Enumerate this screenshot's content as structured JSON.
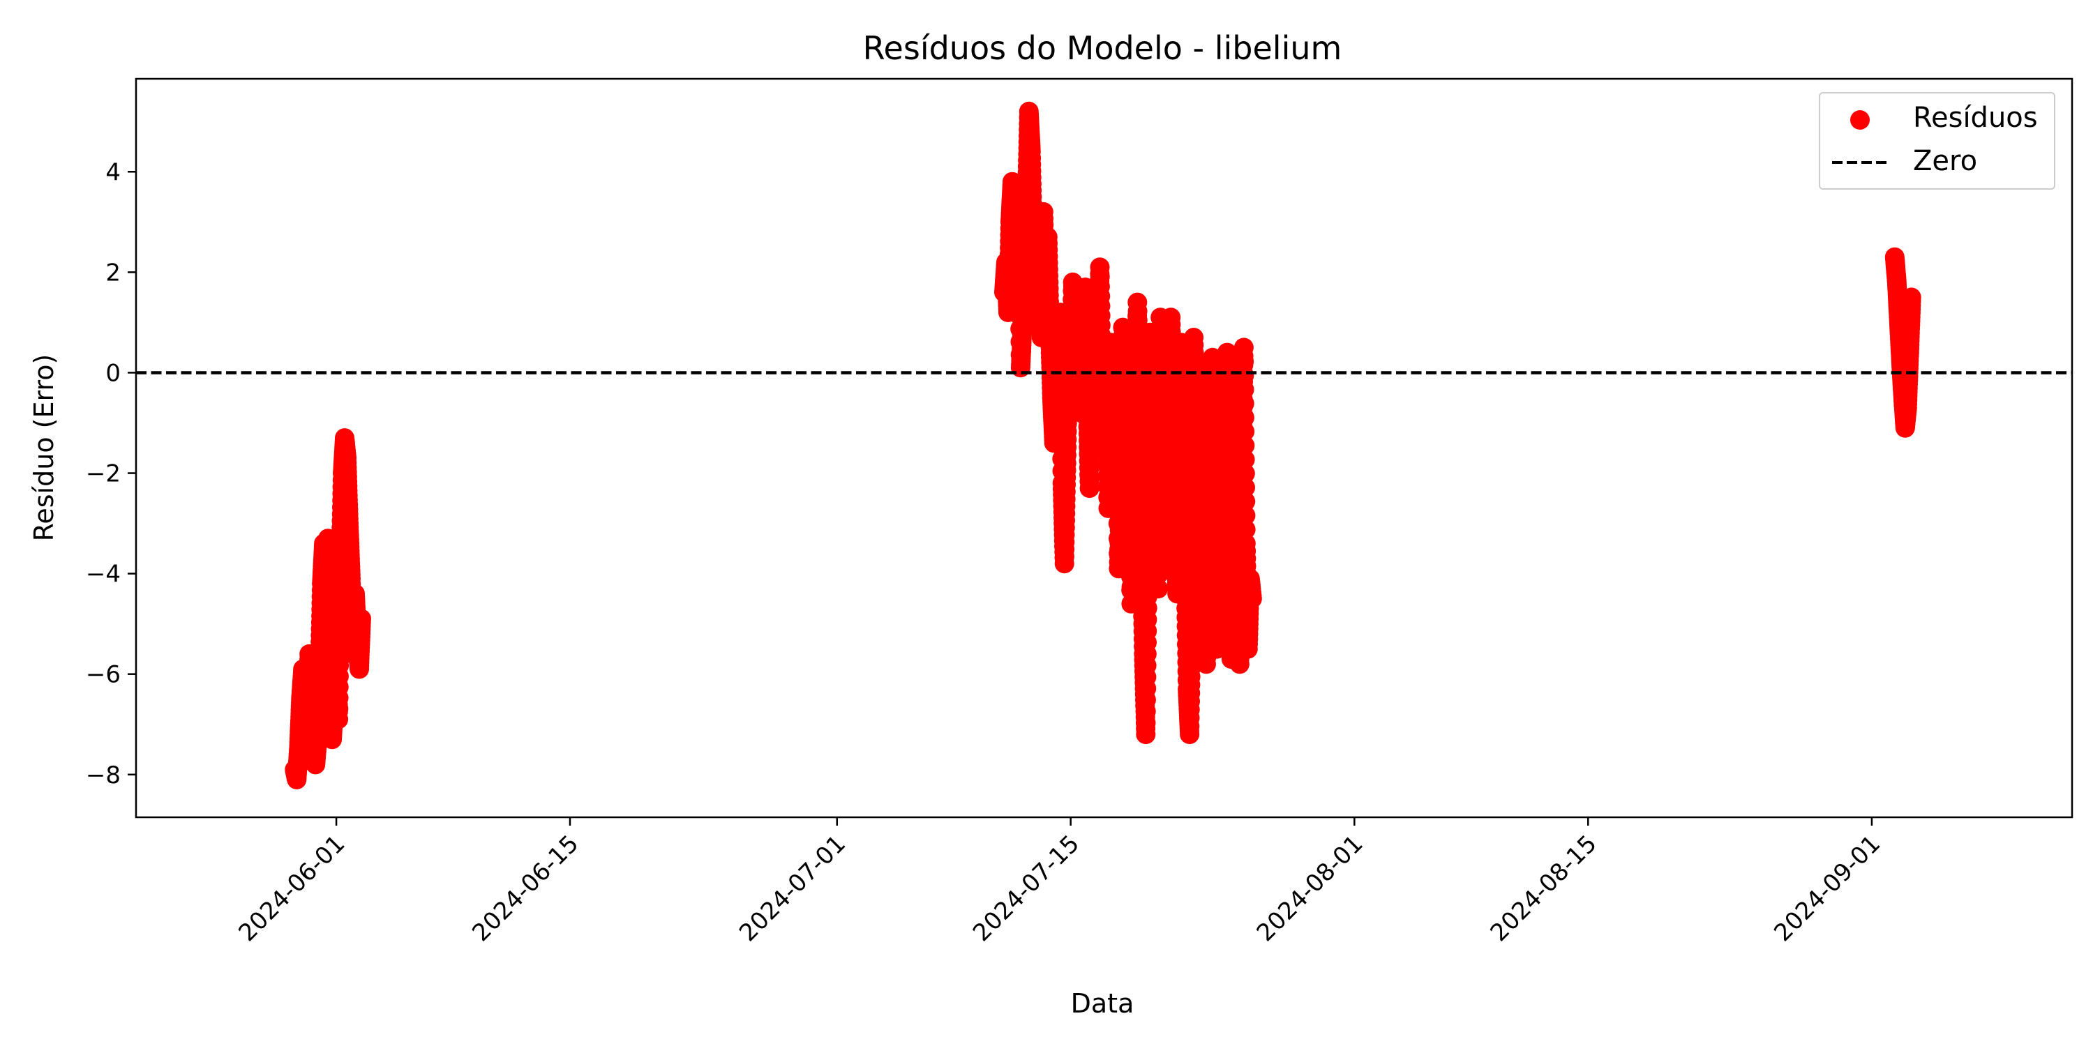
{
  "chart_data": {
    "type": "scatter",
    "title": "Resíduos do Modelo - libelium",
    "xlabel": "Data",
    "ylabel": "Resíduo (Erro)",
    "xlim": [
      "2024-05-20",
      "2024-09-13"
    ],
    "ylim": [
      -8.85,
      5.85
    ],
    "x_ticks": [
      "2024-06-01",
      "2024-06-15",
      "2024-07-01",
      "2024-07-15",
      "2024-08-01",
      "2024-08-15",
      "2024-09-01"
    ],
    "y_ticks": [
      -8,
      -6,
      -4,
      -2,
      0,
      2,
      4
    ],
    "y_tick_labels": [
      "−8",
      "−6",
      "−4",
      "−2",
      "0",
      "2",
      "4"
    ],
    "grid": false,
    "legend_position": "upper right",
    "series": [
      {
        "name": "Resíduos",
        "kind": "scatter",
        "color": "#ff0000",
        "points": [
          [
            "2024-05-29 12:00",
            -7.9
          ],
          [
            "2024-05-29 15:00",
            -8.1
          ],
          [
            "2024-05-29 18:00",
            -7.5
          ],
          [
            "2024-05-29 21:00",
            -6.5
          ],
          [
            "2024-05-30 00:00",
            -5.9
          ],
          [
            "2024-05-30 03:00",
            -6.8
          ],
          [
            "2024-05-30 06:00",
            -7.4
          ],
          [
            "2024-05-30 09:00",
            -5.6
          ],
          [
            "2024-05-30 12:00",
            -6.2
          ],
          [
            "2024-05-30 15:00",
            -7.0
          ],
          [
            "2024-05-30 18:00",
            -7.8
          ],
          [
            "2024-05-30 21:00",
            -7.3
          ],
          [
            "2024-05-31 00:00",
            -6.0
          ],
          [
            "2024-05-31 03:00",
            -4.2
          ],
          [
            "2024-05-31 06:00",
            -3.4
          ],
          [
            "2024-05-31 09:00",
            -5.1
          ],
          [
            "2024-05-31 12:00",
            -3.3
          ],
          [
            "2024-05-31 15:00",
            -5.8
          ],
          [
            "2024-05-31 18:00",
            -7.3
          ],
          [
            "2024-05-31 21:00",
            -6.6
          ],
          [
            "2024-06-01 00:00",
            -4.8
          ],
          [
            "2024-06-01 03:00",
            -6.9
          ],
          [
            "2024-06-01 06:00",
            -3.9
          ],
          [
            "2024-06-01 09:00",
            -2.0
          ],
          [
            "2024-06-01 12:00",
            -1.3
          ],
          [
            "2024-06-01 15:00",
            -1.7
          ],
          [
            "2024-06-01 18:00",
            -3.0
          ],
          [
            "2024-06-01 21:00",
            -4.1
          ],
          [
            "2024-06-02 00:00",
            -5.6
          ],
          [
            "2024-06-02 03:00",
            -4.4
          ],
          [
            "2024-06-02 06:00",
            -5.2
          ],
          [
            "2024-06-02 09:00",
            -5.9
          ],
          [
            "2024-06-02 12:00",
            -4.9
          ],
          [
            "2024-07-11 00:00",
            1.6
          ],
          [
            "2024-07-11 03:00",
            2.2
          ],
          [
            "2024-07-11 06:00",
            1.2
          ],
          [
            "2024-07-11 09:00",
            3.0
          ],
          [
            "2024-07-11 12:00",
            3.8
          ],
          [
            "2024-07-11 15:00",
            2.5
          ],
          [
            "2024-07-11 18:00",
            1.8
          ],
          [
            "2024-07-11 21:00",
            3.7
          ],
          [
            "2024-07-12 00:00",
            0.1
          ],
          [
            "2024-07-12 03:00",
            1.0
          ],
          [
            "2024-07-12 06:00",
            2.8
          ],
          [
            "2024-07-12 09:00",
            3.5
          ],
          [
            "2024-07-12 12:00",
            5.2
          ],
          [
            "2024-07-12 15:00",
            4.4
          ],
          [
            "2024-07-12 18:00",
            2.6
          ],
          [
            "2024-07-12 21:00",
            1.5
          ],
          [
            "2024-07-13 00:00",
            3.1
          ],
          [
            "2024-07-13 03:00",
            2.0
          ],
          [
            "2024-07-13 06:00",
            0.7
          ],
          [
            "2024-07-13 09:00",
            3.2
          ],
          [
            "2024-07-13 12:00",
            1.4
          ],
          [
            "2024-07-13 15:00",
            2.7
          ],
          [
            "2024-07-13 18:00",
            0.9
          ],
          [
            "2024-07-13 21:00",
            -0.5
          ],
          [
            "2024-07-14 00:00",
            -1.4
          ],
          [
            "2024-07-14 03:00",
            0.8
          ],
          [
            "2024-07-14 06:00",
            -0.9
          ],
          [
            "2024-07-14 09:00",
            1.2
          ],
          [
            "2024-07-14 12:00",
            -2.2
          ],
          [
            "2024-07-14 15:00",
            -3.8
          ],
          [
            "2024-07-14 18:00",
            -1.8
          ],
          [
            "2024-07-14 21:00",
            0.4
          ],
          [
            "2024-07-15 00:00",
            -0.6
          ],
          [
            "2024-07-15 03:00",
            1.8
          ],
          [
            "2024-07-15 06:00",
            0.9
          ],
          [
            "2024-07-15 09:00",
            -0.3
          ],
          [
            "2024-07-15 12:00",
            1.1
          ],
          [
            "2024-07-15 15:00",
            -0.8
          ],
          [
            "2024-07-15 18:00",
            0.5
          ],
          [
            "2024-07-15 21:00",
            1.7
          ],
          [
            "2024-07-16 00:00",
            -0.4
          ],
          [
            "2024-07-16 03:00",
            -2.3
          ],
          [
            "2024-07-16 06:00",
            0.6
          ],
          [
            "2024-07-16 09:00",
            1.6
          ],
          [
            "2024-07-16 12:00",
            -1.0
          ],
          [
            "2024-07-16 15:00",
            0.2
          ],
          [
            "2024-07-16 18:00",
            2.1
          ],
          [
            "2024-07-16 21:00",
            -0.6
          ],
          [
            "2024-07-17 00:00",
            -1.6
          ],
          [
            "2024-07-17 03:00",
            0.3
          ],
          [
            "2024-07-17 06:00",
            -2.7
          ],
          [
            "2024-07-17 09:00",
            0.6
          ],
          [
            "2024-07-17 12:00",
            -1.9
          ],
          [
            "2024-07-17 15:00",
            -0.2
          ],
          [
            "2024-07-17 18:00",
            0.3
          ],
          [
            "2024-07-17 21:00",
            -3.9
          ],
          [
            "2024-07-18 00:00",
            -2.1
          ],
          [
            "2024-07-18 03:00",
            0.9
          ],
          [
            "2024-07-18 06:00",
            -1.5
          ],
          [
            "2024-07-18 09:00",
            -3.2
          ],
          [
            "2024-07-18 12:00",
            -0.8
          ],
          [
            "2024-07-18 15:00",
            -4.6
          ],
          [
            "2024-07-18 18:00",
            0.1
          ],
          [
            "2024-07-18 21:00",
            -2.4
          ],
          [
            "2024-07-19 00:00",
            1.4
          ],
          [
            "2024-07-19 03:00",
            -1.1
          ],
          [
            "2024-07-19 06:00",
            -3.5
          ],
          [
            "2024-07-19 09:00",
            -5.6
          ],
          [
            "2024-07-19 12:00",
            -7.2
          ],
          [
            "2024-07-19 15:00",
            -4.0
          ],
          [
            "2024-07-19 18:00",
            0.8
          ],
          [
            "2024-07-19 21:00",
            -1.3
          ],
          [
            "2024-07-20 00:00",
            -2.8
          ],
          [
            "2024-07-20 03:00",
            -0.4
          ],
          [
            "2024-07-20 06:00",
            -4.3
          ],
          [
            "2024-07-20 09:00",
            1.1
          ],
          [
            "2024-07-20 12:00",
            -1.7
          ],
          [
            "2024-07-20 15:00",
            -3.6
          ],
          [
            "2024-07-20 18:00",
            0.2
          ],
          [
            "2024-07-20 21:00",
            -2.5
          ],
          [
            "2024-07-21 00:00",
            1.1
          ],
          [
            "2024-07-21 03:00",
            -0.9
          ],
          [
            "2024-07-21 06:00",
            -3.0
          ],
          [
            "2024-07-21 09:00",
            -4.4
          ],
          [
            "2024-07-21 12:00",
            -1.6
          ],
          [
            "2024-07-21 15:00",
            0.6
          ],
          [
            "2024-07-21 18:00",
            -2.2
          ],
          [
            "2024-07-21 21:00",
            -3.8
          ],
          [
            "2024-07-22 00:00",
            -6.3
          ],
          [
            "2024-07-22 03:00",
            -7.2
          ],
          [
            "2024-07-22 06:00",
            -4.9
          ],
          [
            "2024-07-22 09:00",
            0.7
          ],
          [
            "2024-07-22 12:00",
            -1.4
          ],
          [
            "2024-07-22 15:00",
            -3.3
          ],
          [
            "2024-07-22 18:00",
            -5.1
          ],
          [
            "2024-07-22 21:00",
            -0.3
          ],
          [
            "2024-07-23 00:00",
            -2.9
          ],
          [
            "2024-07-23 03:00",
            -5.8
          ],
          [
            "2024-07-23 06:00",
            -4.0
          ],
          [
            "2024-07-23 09:00",
            -1.8
          ],
          [
            "2024-07-23 12:00",
            0.3
          ],
          [
            "2024-07-23 15:00",
            -3.7
          ],
          [
            "2024-07-23 18:00",
            -5.5
          ],
          [
            "2024-07-23 21:00",
            -2.4
          ],
          [
            "2024-07-24 00:00",
            -4.6
          ],
          [
            "2024-07-24 03:00",
            -5.2
          ],
          [
            "2024-07-24 06:00",
            -1.2
          ],
          [
            "2024-07-24 09:00",
            0.4
          ],
          [
            "2024-07-24 12:00",
            -3.1
          ],
          [
            "2024-07-24 15:00",
            -5.7
          ],
          [
            "2024-07-24 18:00",
            -2.6
          ],
          [
            "2024-07-24 21:00",
            -0.8
          ],
          [
            "2024-07-25 00:00",
            -4.3
          ],
          [
            "2024-07-25 03:00",
            -5.8
          ],
          [
            "2024-07-25 06:00",
            -1.9
          ],
          [
            "2024-07-25 09:00",
            0.5
          ],
          [
            "2024-07-25 12:00",
            -3.4
          ],
          [
            "2024-07-25 15:00",
            -5.5
          ],
          [
            "2024-07-25 18:00",
            -4.1
          ],
          [
            "2024-07-25 21:00",
            -4.5
          ],
          [
            "2024-09-02 09:00",
            2.3
          ],
          [
            "2024-09-02 12:00",
            1.8
          ],
          [
            "2024-09-02 15:00",
            1.0
          ],
          [
            "2024-09-02 18:00",
            0.2
          ],
          [
            "2024-09-02 21:00",
            -0.5
          ],
          [
            "2024-09-03 00:00",
            -1.1
          ],
          [
            "2024-09-03 03:00",
            -0.7
          ],
          [
            "2024-09-03 06:00",
            0.4
          ],
          [
            "2024-09-03 09:00",
            1.5
          ]
        ]
      },
      {
        "name": "Zero",
        "kind": "hline",
        "y": 0,
        "color": "#000000",
        "linestyle": "dashed"
      }
    ]
  }
}
